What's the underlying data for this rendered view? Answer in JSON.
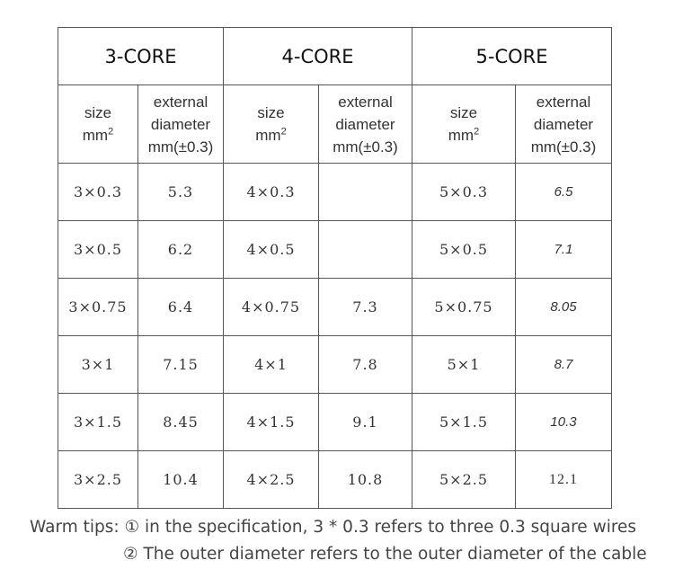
{
  "groups": [
    "3-CORE",
    "4-CORE",
    "5-CORE"
  ],
  "column_headers": {
    "size": [
      "size",
      "mm",
      "2"
    ],
    "diameter": [
      "external",
      "diameter",
      "mm(±0.3)"
    ]
  },
  "rows": [
    [
      "3×0.3",
      "5.3",
      "4×0.3",
      "",
      "5×0.3",
      "6.5"
    ],
    [
      "3×0.5",
      "6.2",
      "4×0.5",
      "",
      "5×0.5",
      "7.1"
    ],
    [
      "3×0.75",
      "6.4",
      "4×0.75",
      "7.3",
      "5×0.75",
      "8.05"
    ],
    [
      "3×1",
      "7.15",
      "4×1",
      "7.8",
      "5×1",
      "8.7"
    ],
    [
      "3×1.5",
      "8.45",
      "4×1.5",
      "9.1",
      "5×1.5",
      "10.3"
    ],
    [
      "3×2.5",
      "10.4",
      "4×2.5",
      "10.8",
      "5×2.5",
      "12.1"
    ]
  ],
  "tips": {
    "line1": "Warm tips: ① in the specification, 3 * 0.3 refers to three 0.3 square wires",
    "line2": "② The outer diameter refers to the outer diameter of the cable"
  }
}
